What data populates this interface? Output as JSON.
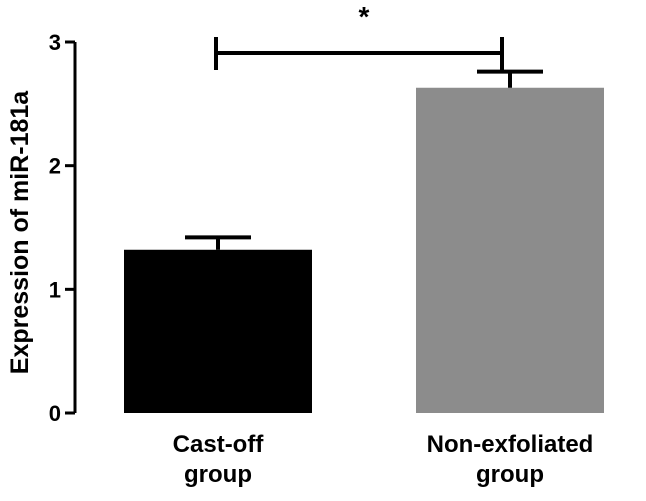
{
  "chart_data": {
    "type": "bar",
    "title": "",
    "xlabel": "",
    "ylabel": "Expression of miR-181a",
    "ylim": [
      0,
      3
    ],
    "yticks": [
      0,
      1,
      2,
      3
    ],
    "categories": [
      [
        "Cast-off",
        "group"
      ],
      [
        "Non-exfoliated",
        "group"
      ]
    ],
    "values": [
      1.32,
      2.63
    ],
    "errors": [
      0.1,
      0.13
    ],
    "bar_colors": [
      "#000000",
      "#8c8c8c"
    ],
    "significance": {
      "label": "*",
      "from": 0,
      "to": 1
    }
  }
}
